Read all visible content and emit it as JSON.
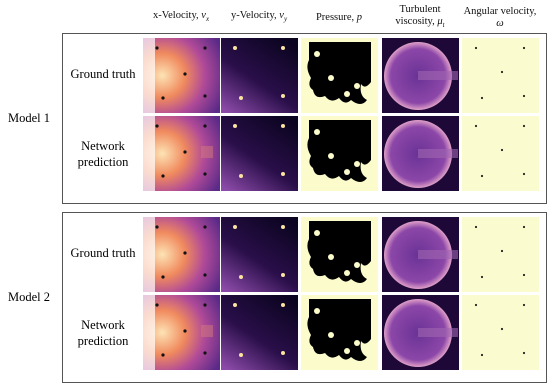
{
  "columns": [
    {
      "text": "x-Velocity,",
      "symbol": "v",
      "subscript": "x"
    },
    {
      "text": "y-Velocity,",
      "symbol": "v",
      "subscript": "y"
    },
    {
      "text": "Pressure,",
      "symbol": "p"
    },
    {
      "text": "Turbulent viscosity,",
      "symbol": "μ",
      "subscript": "t"
    },
    {
      "text": "Angular velocity,",
      "symbol": "ω"
    }
  ],
  "models": [
    {
      "label": "Model 1",
      "rows": [
        "Ground truth",
        "Network prediction"
      ]
    },
    {
      "label": "Model 2",
      "rows": [
        "Ground truth",
        "Network prediction"
      ]
    }
  ]
}
